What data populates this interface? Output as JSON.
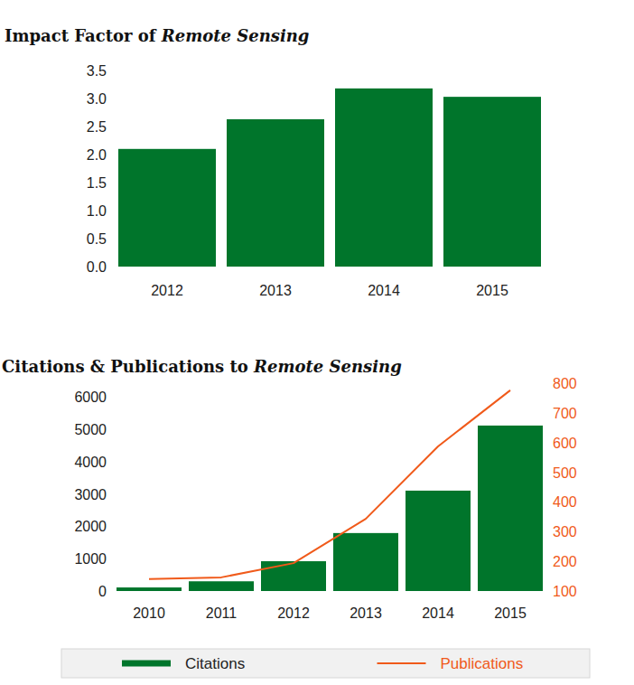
{
  "chart_data": [
    {
      "type": "bar",
      "title": "Impact Factor of Remote Sensing",
      "categories": [
        "2012",
        "2013",
        "2014",
        "2015"
      ],
      "values": [
        2.1,
        2.63,
        3.18,
        3.03
      ],
      "color": "#00752b",
      "ylim": [
        0,
        3.5
      ],
      "yticks": [
        {
          "value": 0,
          "label": "0.0"
        },
        0.5,
        {
          "value": 1,
          "label": "1.0"
        },
        1.5,
        {
          "value": 2,
          "label": "2.0"
        },
        2.5,
        {
          "value": 3,
          "label": "3.0"
        },
        3.5
      ],
      "grid": false
    },
    {
      "type": "bar",
      "title": "Citations & Publications to Remote Sensing",
      "categories": [
        "2010",
        "2011",
        "2012",
        "2013",
        "2014",
        "2015"
      ],
      "series": [
        {
          "name": "Citations",
          "type": "bar",
          "color": "#00752b",
          "values": [
            110,
            300,
            920,
            1790,
            3100,
            5110
          ]
        },
        {
          "name": "Publications",
          "type": "line",
          "axis": "y2",
          "color": "#f05a1a",
          "values": [
            140,
            146,
            194,
            343,
            587,
            776
          ]
        }
      ],
      "ylim": [
        0,
        6000
      ],
      "yticks": [
        0,
        1000,
        2000,
        3000,
        4000,
        5000,
        6000
      ],
      "y2lim": [
        100,
        800
      ],
      "y2ticks": [
        100,
        200,
        300,
        400,
        500,
        600,
        700,
        800
      ],
      "grid": false,
      "legend": "bottom"
    }
  ]
}
